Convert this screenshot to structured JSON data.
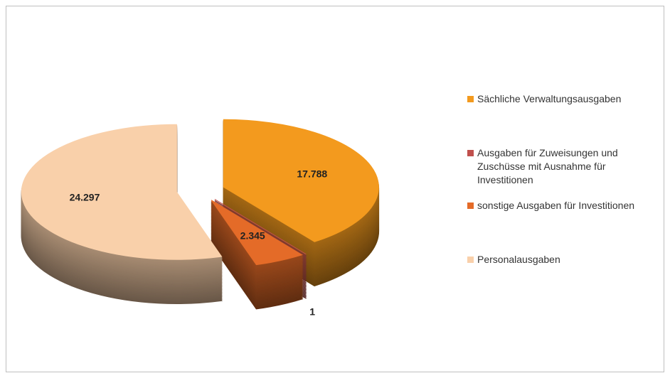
{
  "chart_data": {
    "type": "pie",
    "categories": [
      "Sächliche Verwaltungsausgaben",
      "Ausgaben für Zuweisungen und Zuschüsse mit Ausnahme für Investitionen",
      "sonstige Ausgaben für Investitionen",
      "Personalausgaben"
    ],
    "values": [
      17788,
      1,
      2345,
      24297
    ],
    "value_labels": [
      "17.788",
      "1",
      "2.345",
      "24.297"
    ],
    "colors": [
      "#f39a1e",
      "#c0504d",
      "#e46b28",
      "#f9d0aa"
    ],
    "legend": "right"
  }
}
